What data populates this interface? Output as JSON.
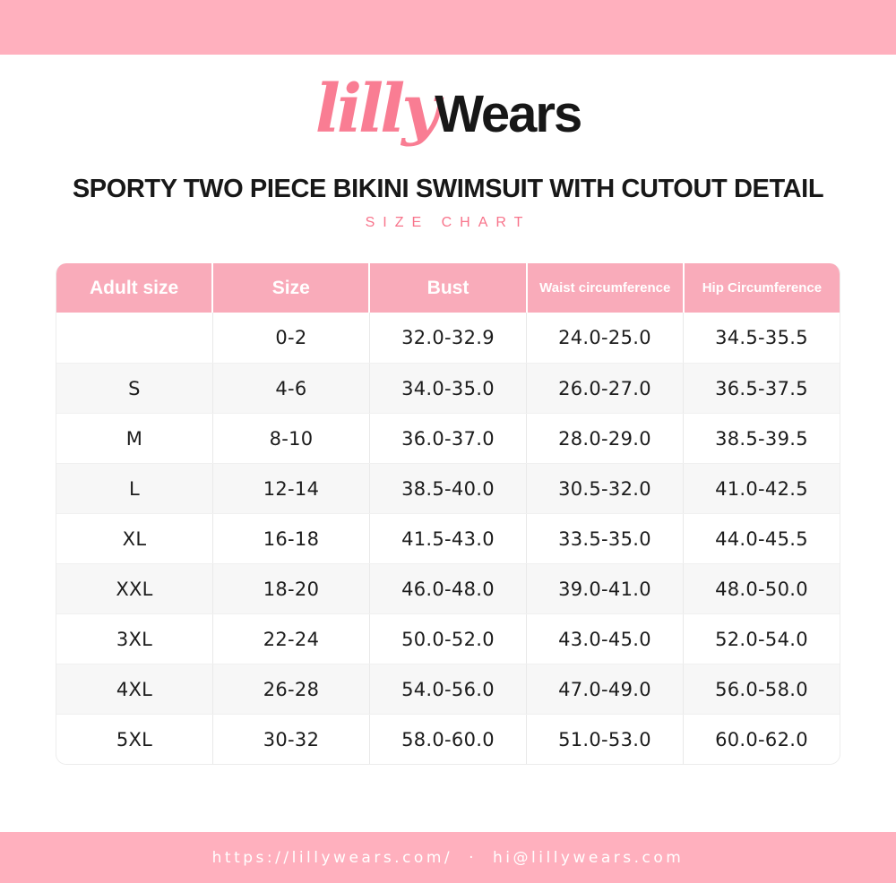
{
  "brand": {
    "logo_script": "lilly",
    "logo_rest": "Wears"
  },
  "header": {
    "title": "SPORTY TWO PIECE BIKINI SWIMSUIT WITH CUTOUT DETAIL",
    "subtitle": "SIZE CHART"
  },
  "table": {
    "columns": [
      "Adult size",
      "Size",
      "Bust",
      "Waist circumference",
      "Hip Circumference"
    ],
    "small_header_columns": [
      3,
      4
    ],
    "rows": [
      [
        "",
        "0-2",
        "32.0-32.9",
        "24.0-25.0",
        "34.5-35.5"
      ],
      [
        "S",
        "4-6",
        "34.0-35.0",
        "26.0-27.0",
        "36.5-37.5"
      ],
      [
        "M",
        "8-10",
        "36.0-37.0",
        "28.0-29.0",
        "38.5-39.5"
      ],
      [
        "L",
        "12-14",
        "38.5-40.0",
        "30.5-32.0",
        "41.0-42.5"
      ],
      [
        "XL",
        "16-18",
        "41.5-43.0",
        "33.5-35.0",
        "44.0-45.5"
      ],
      [
        "XXL",
        "18-20",
        "46.0-48.0",
        "39.0-41.0",
        "48.0-50.0"
      ],
      [
        "3XL",
        "22-24",
        "50.0-52.0",
        "43.0-45.0",
        "52.0-54.0"
      ],
      [
        "4XL",
        "26-28",
        "54.0-56.0",
        "47.0-49.0",
        "56.0-58.0"
      ],
      [
        "5XL",
        "30-32",
        "58.0-60.0",
        "51.0-53.0",
        "60.0-62.0"
      ]
    ]
  },
  "footer": {
    "website": "https://lillywears.com/",
    "separator": "·",
    "email": "hi@lillywears.com"
  },
  "colors": {
    "banner_pink": "#FFB0BE",
    "table_header_pink": "#F9ABBA",
    "accent_pink": "#F8748B",
    "logo_pink": "#F97D93",
    "row_alt_gray": "#F7F7F7",
    "text_dark": "#181818"
  }
}
